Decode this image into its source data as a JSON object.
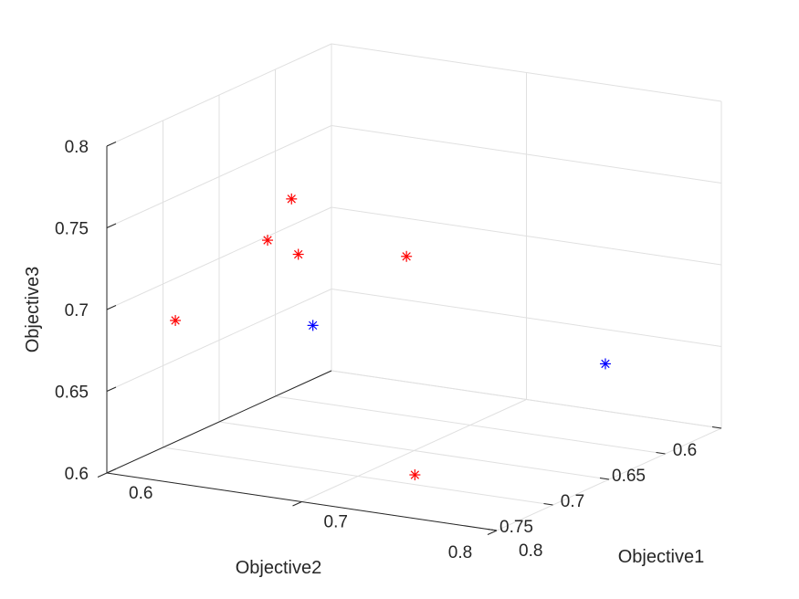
{
  "chart_data": {
    "type": "scatter",
    "dimensions": "3d",
    "grid": true,
    "box": false,
    "axes": {
      "x": {
        "label": "Objective1",
        "lim": [
          0.6,
          0.8
        ],
        "ticks": [
          0.6,
          0.7,
          0.8
        ],
        "tick_labels": [
          "0.6",
          "0.7",
          "0.8"
        ]
      },
      "y": {
        "label": "Objective2",
        "lim": [
          0.6,
          0.8
        ],
        "ticks": [
          0.6,
          0.65,
          0.7,
          0.75,
          0.8
        ],
        "tick_labels": [
          "0.6",
          "0.65",
          "0.7",
          "0.75",
          "0.8"
        ]
      },
      "z": {
        "label": "Objective3",
        "lim": [
          0.6,
          0.8
        ],
        "ticks": [
          0.6,
          0.65,
          0.7,
          0.75,
          0.8
        ],
        "tick_labels": [
          "0.6",
          "0.65",
          "0.7",
          "0.75",
          "0.8"
        ]
      }
    },
    "series": [
      {
        "marker": "asterisk",
        "color": "#ff0000",
        "points": [
          {
            "x": 0.65,
            "y": 0.62,
            "z": 0.685
          },
          {
            "x": 0.64,
            "y": 0.705,
            "z": 0.745
          },
          {
            "x": 0.645,
            "y": 0.735,
            "z": 0.73
          },
          {
            "x": 0.655,
            "y": 0.725,
            "z": 0.72
          },
          {
            "x": 0.615,
            "y": 0.765,
            "z": 0.685
          },
          {
            "x": 0.739,
            "y": 0.767,
            "z": 0.613
          }
        ]
      },
      {
        "marker": "asterisk",
        "color": "#0000ff",
        "points": [
          {
            "x": 0.621,
            "y": 0.653,
            "z": 0.648
          },
          {
            "x": 0.767,
            "y": 0.646,
            "z": 0.648
          }
        ]
      }
    ]
  },
  "colors": {
    "grid": "#e0e0e0",
    "axis": "#262626",
    "text": "#262626"
  }
}
